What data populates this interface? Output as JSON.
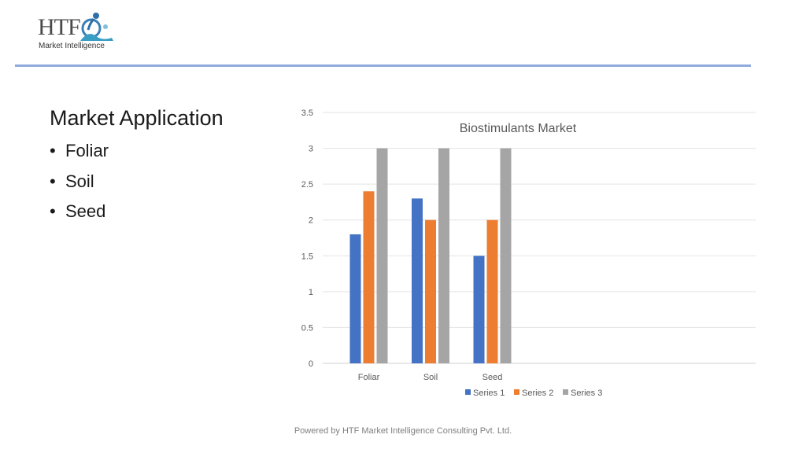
{
  "logo": {
    "brand": "HTF",
    "tagline": "Market Intelligence"
  },
  "slide": {
    "title": "Market Application",
    "bullets": [
      "Foliar",
      "Soil",
      "Seed"
    ]
  },
  "footer": "Powered by HTF Market Intelligence Consulting Pvt. Ltd.",
  "colors": {
    "divider": "#8faadc",
    "series1": "#4472c4",
    "series2": "#ed7d31",
    "series3": "#a5a5a5"
  },
  "chart_data": {
    "type": "bar",
    "title": "Biostimulants Market",
    "categories": [
      "Foliar",
      "Soil",
      "Seed"
    ],
    "series": [
      {
        "name": "Series 1",
        "values": [
          1.8,
          2.3,
          1.5
        ],
        "color": "#4472c4"
      },
      {
        "name": "Series 2",
        "values": [
          2.4,
          2.0,
          2.0
        ],
        "color": "#ed7d31"
      },
      {
        "name": "Series 3",
        "values": [
          3.0,
          3.0,
          3.0
        ],
        "color": "#a5a5a5"
      }
    ],
    "ylim": [
      0,
      3.5
    ],
    "yticks": [
      "0",
      "0.5",
      "1",
      "1.5",
      "2",
      "2.5",
      "3",
      "3.5"
    ],
    "grid": true,
    "legend": "bottom",
    "xlabel": "",
    "ylabel": ""
  }
}
